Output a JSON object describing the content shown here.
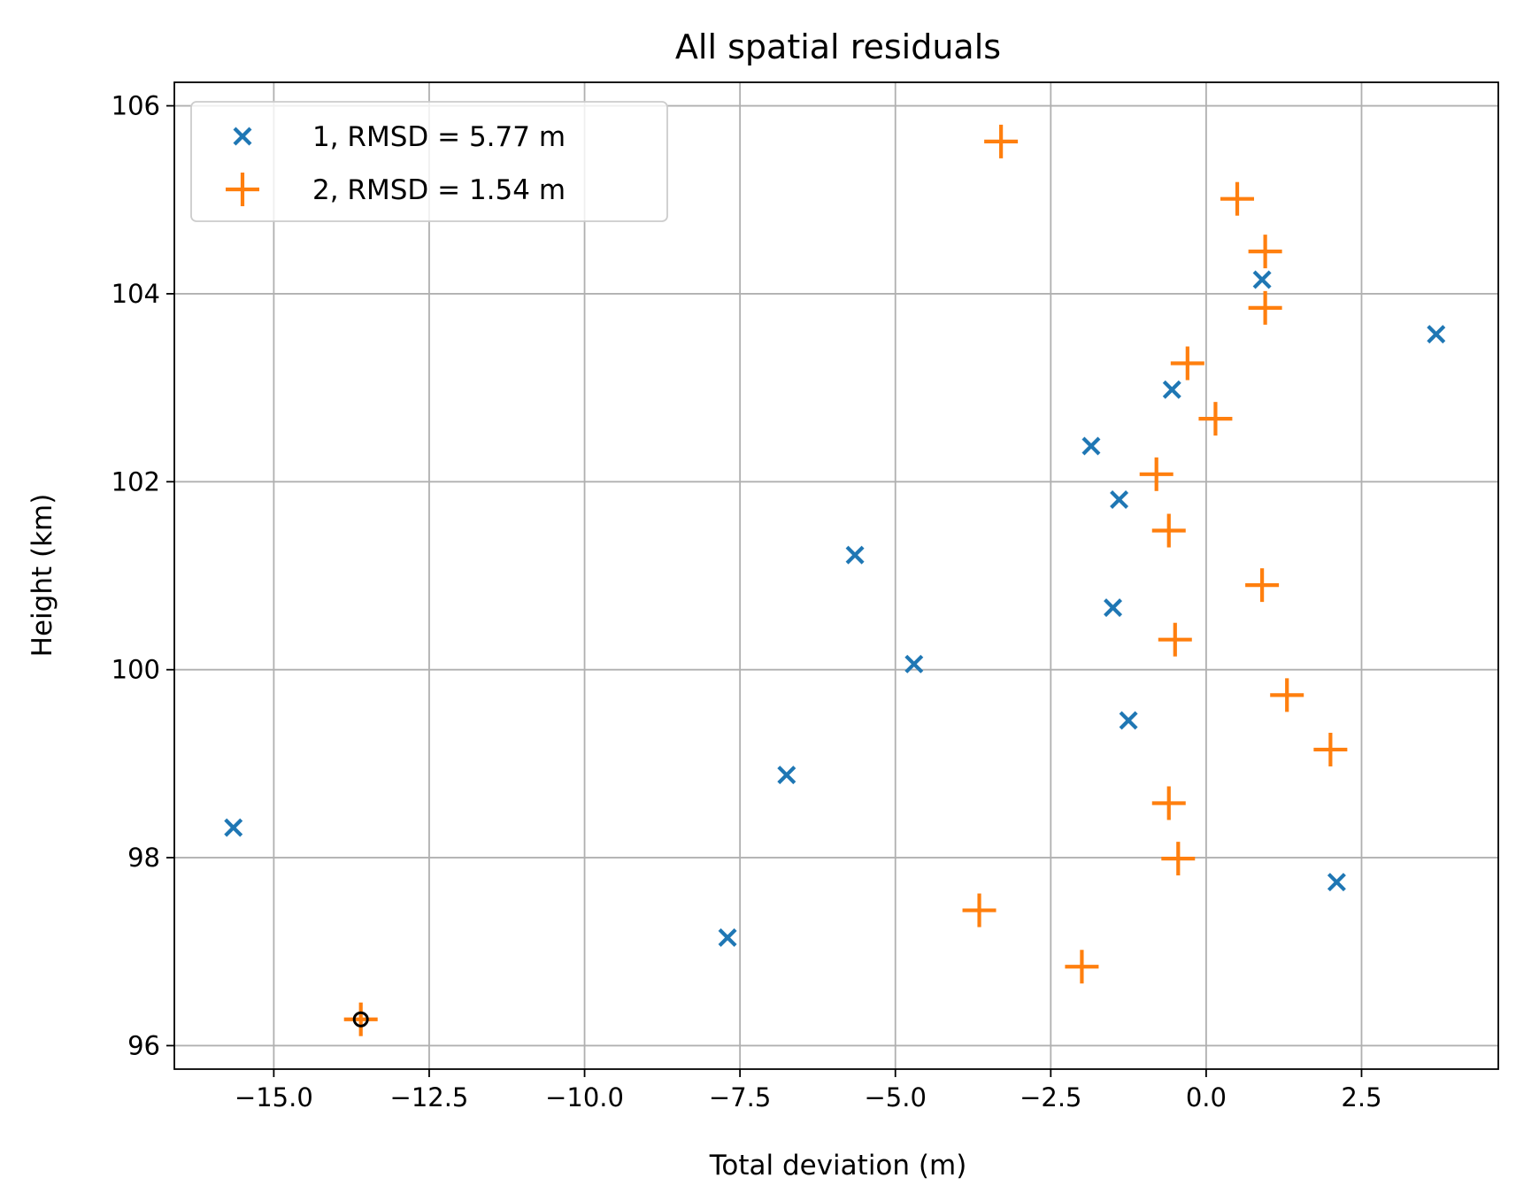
{
  "chart_data": {
    "type": "scatter",
    "title": "All spatial residuals",
    "xlabel": "Total deviation (m)",
    "ylabel": "Height (km)",
    "xlim": [
      -16.6,
      4.7
    ],
    "ylim": [
      95.75,
      106.25
    ],
    "xticks": [
      -15.0,
      -12.5,
      -10.0,
      -7.5,
      -5.0,
      -2.5,
      0.0,
      2.5
    ],
    "xtick_labels": [
      "−15.0",
      "−12.5",
      "−10.0",
      "−7.5",
      "−5.0",
      "−2.5",
      "0.0",
      "2.5"
    ],
    "yticks": [
      96,
      98,
      100,
      102,
      104,
      106
    ],
    "ytick_labels": [
      "96",
      "98",
      "100",
      "102",
      "104",
      "106"
    ],
    "grid": true,
    "legend_position": "top-left",
    "series": [
      {
        "name": "1, RMSD = 5.77 m",
        "marker": "x",
        "color": "#1f77b4",
        "points": [
          {
            "x": -15.65,
            "y": 98.32
          },
          {
            "x": -7.7,
            "y": 97.15
          },
          {
            "x": -6.75,
            "y": 98.88
          },
          {
            "x": -5.65,
            "y": 101.22
          },
          {
            "x": -4.7,
            "y": 100.06
          },
          {
            "x": -1.85,
            "y": 102.38
          },
          {
            "x": -1.5,
            "y": 100.66
          },
          {
            "x": -1.4,
            "y": 101.81
          },
          {
            "x": -1.25,
            "y": 99.46
          },
          {
            "x": -0.55,
            "y": 102.98
          },
          {
            "x": 0.9,
            "y": 104.15
          },
          {
            "x": 2.1,
            "y": 97.74
          },
          {
            "x": 3.7,
            "y": 103.57
          }
        ]
      },
      {
        "name": "2, RMSD = 1.54 m",
        "marker": "+",
        "color": "#ff7f0e",
        "points": [
          {
            "x": -13.6,
            "y": 96.28
          },
          {
            "x": -3.3,
            "y": 105.62
          },
          {
            "x": -3.65,
            "y": 97.44
          },
          {
            "x": -2.0,
            "y": 96.84
          },
          {
            "x": -0.8,
            "y": 102.08
          },
          {
            "x": -0.6,
            "y": 101.48
          },
          {
            "x": -0.6,
            "y": 98.58
          },
          {
            "x": -0.5,
            "y": 100.32
          },
          {
            "x": -0.45,
            "y": 97.99
          },
          {
            "x": -0.3,
            "y": 103.26
          },
          {
            "x": 0.15,
            "y": 102.67
          },
          {
            "x": 0.5,
            "y": 105.01
          },
          {
            "x": 0.9,
            "y": 100.9
          },
          {
            "x": 0.95,
            "y": 104.45
          },
          {
            "x": 0.95,
            "y": 103.85
          },
          {
            "x": 1.3,
            "y": 99.73
          },
          {
            "x": 2.0,
            "y": 99.15
          }
        ]
      }
    ],
    "highlight": {
      "x": -13.6,
      "y": 96.28,
      "marker": "circle",
      "color": "#000000"
    }
  }
}
